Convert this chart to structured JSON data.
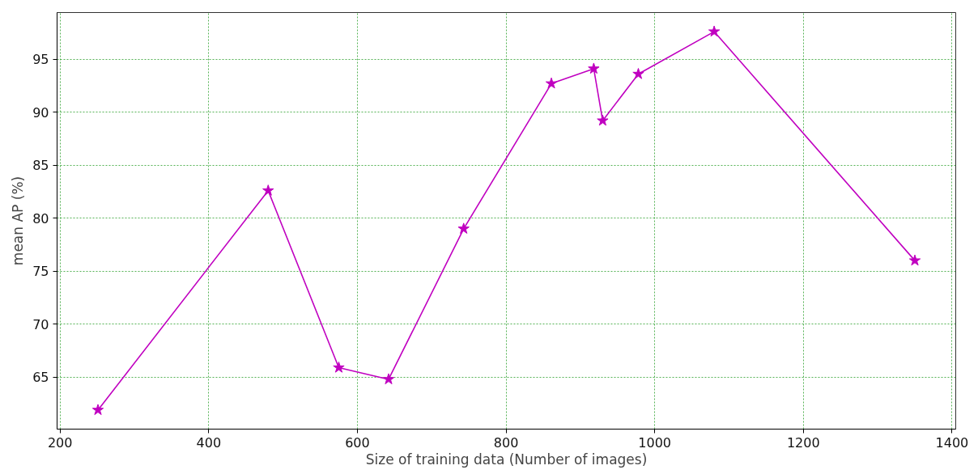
{
  "chart_data": {
    "type": "line",
    "xlabel": "Size of training data (Number of images)",
    "ylabel": "mean AP (%)",
    "x": [
      251,
      480,
      575,
      642,
      743,
      861,
      918,
      930,
      978,
      1080,
      1350
    ],
    "series": [
      {
        "color": "#c000c0",
        "values": [
          61.9,
          82.6,
          65.9,
          64.8,
          79.0,
          92.7,
          94.1,
          89.2,
          93.6,
          97.6,
          76.0
        ]
      }
    ],
    "xlim": [
      196,
      1405
    ],
    "ylim": [
      60.1,
      99.4
    ],
    "xticks": [
      200,
      400,
      600,
      800,
      1000,
      1200,
      1400
    ],
    "yticks": [
      65,
      70,
      75,
      80,
      85,
      90,
      95
    ],
    "grid": true,
    "marker": "star",
    "line_style": "solid"
  }
}
